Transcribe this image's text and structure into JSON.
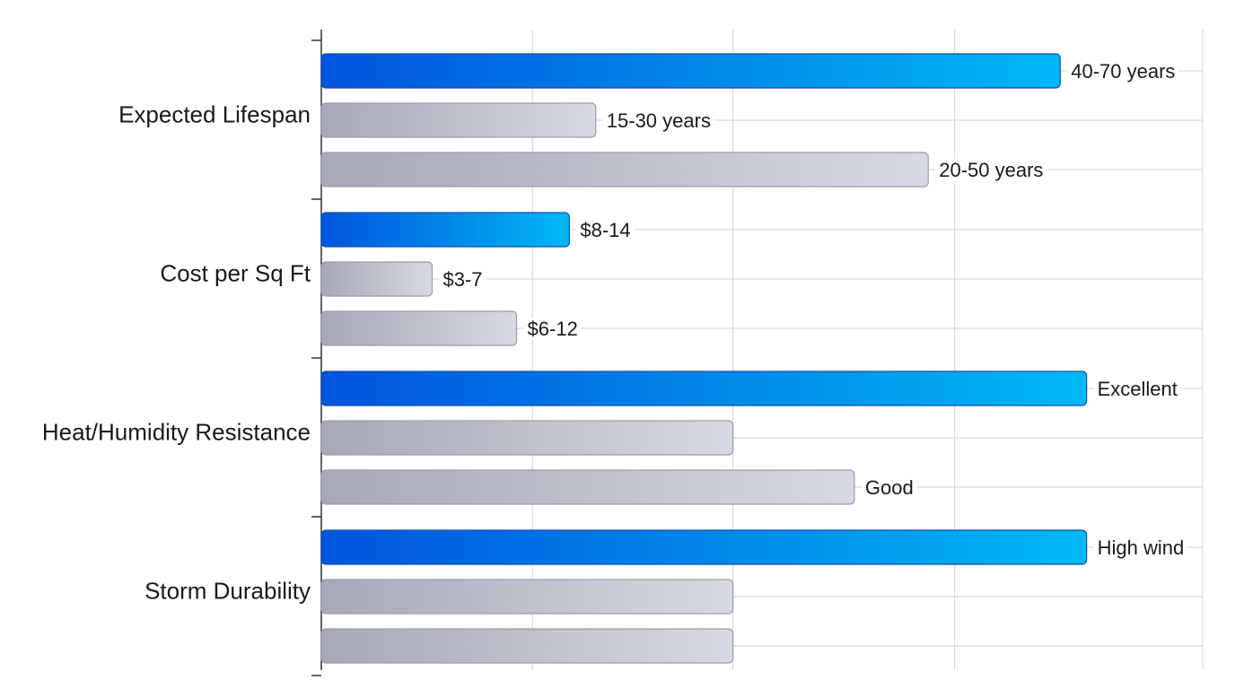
{
  "chart_data": {
    "type": "bar",
    "orientation": "horizontal",
    "grouped": true,
    "categories": [
      "Expected Lifespan",
      "Cost per Sq Ft",
      "Heat/Humidity Resistance",
      "Storm Durability"
    ],
    "series": [
      {
        "color_start": "#0055dd",
        "color_end": "#00b8f4",
        "values": [
          7.0,
          2.35,
          7.25,
          7.25
        ],
        "labels": [
          "40-70 years",
          "$8-14",
          "Excellent",
          "High wind"
        ]
      },
      {
        "color_start": "#a5a9b6",
        "color_end": "#d7d9e2",
        "values": [
          2.6,
          1.05,
          3.9,
          3.9
        ],
        "labels": [
          "15-30 years",
          "$3-7",
          "",
          ""
        ]
      },
      {
        "color_start": "#a5a9b6",
        "color_end": "#d7d9e2",
        "values": [
          5.75,
          1.85,
          5.05,
          3.9
        ],
        "labels": [
          "20-50 years",
          "$6-12",
          "Good",
          ""
        ]
      }
    ],
    "xlim": [
      0,
      8.35
    ],
    "x_gridlines": [
      2.0,
      3.9,
      6.0,
      8.35
    ],
    "grid": true,
    "legend": "none",
    "title": "",
    "xlabel": "",
    "ylabel": ""
  }
}
